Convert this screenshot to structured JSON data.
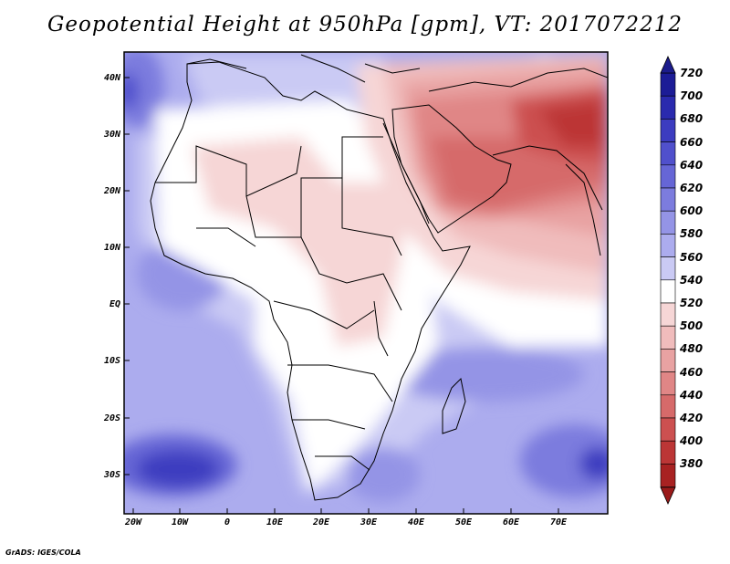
{
  "title": "Geopotential Height at 950hPa [gpm], VT: 2017072212",
  "credit": "GrADS: IGES/COLA",
  "lat_labels": [
    "40N",
    "30N",
    "20N",
    "10N",
    "EQ",
    "10S",
    "20S",
    "30S"
  ],
  "lon_labels": [
    "20W",
    "10W",
    "0",
    "10E",
    "20E",
    "30E",
    "40E",
    "50E",
    "60E",
    "70E"
  ],
  "colorbar": {
    "levels": [
      "720",
      "700",
      "680",
      "660",
      "640",
      "620",
      "600",
      "580",
      "560",
      "540",
      "520",
      "500",
      "480",
      "460",
      "440",
      "420",
      "400",
      "380"
    ],
    "colors": [
      "#1c1c96",
      "#2a2aae",
      "#3c3cc0",
      "#5050cc",
      "#6666d6",
      "#7c7cde",
      "#9494e6",
      "#acacee",
      "#cacaf4",
      "#ffffff",
      "#f6d6d6",
      "#f0bcbc",
      "#e8a2a2",
      "#e08686",
      "#d66a6a",
      "#cc5050",
      "#bc3636",
      "#a82222"
    ],
    "top_color": "#1c1c8c",
    "bottom_color": "#9a1a1a"
  }
}
